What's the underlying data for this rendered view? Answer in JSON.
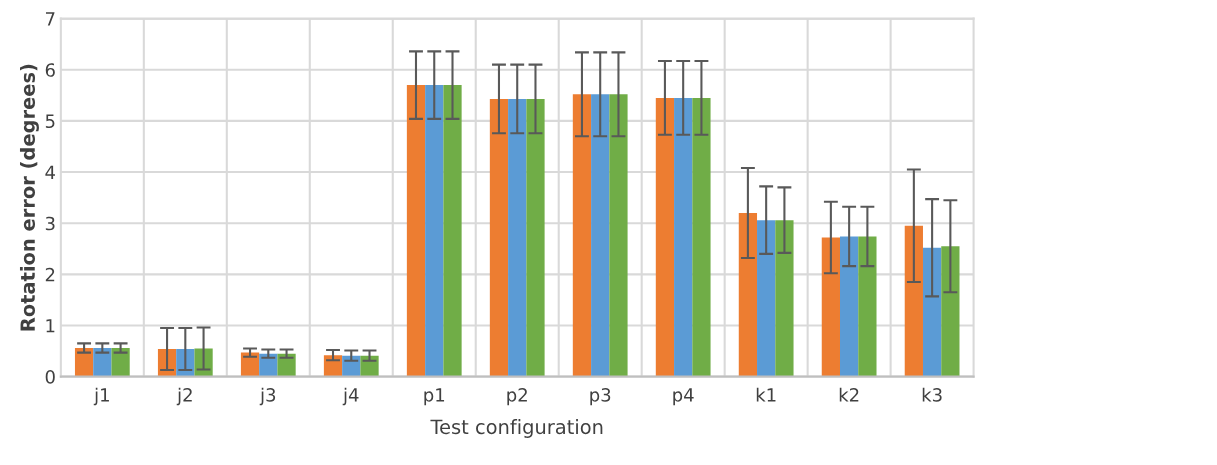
{
  "chart_data": {
    "type": "bar",
    "xlabel": "Test configuration",
    "ylabel": "Rotation error (degrees)",
    "categories": [
      "j1",
      "j2",
      "j3",
      "j4",
      "p1",
      "p2",
      "p3",
      "p4",
      "k1",
      "k2",
      "k3"
    ],
    "series": [
      {
        "color": "#ed7d31",
        "values": [
          0.56,
          0.54,
          0.47,
          0.42,
          5.7,
          5.43,
          5.52,
          5.45,
          3.2,
          2.72,
          2.95
        ],
        "errors": [
          0.09,
          0.41,
          0.08,
          0.1,
          0.66,
          0.67,
          0.82,
          0.72,
          0.88,
          0.7,
          1.1
        ]
      },
      {
        "color": "#5b9bd5",
        "values": [
          0.56,
          0.54,
          0.45,
          0.41,
          5.7,
          5.43,
          5.52,
          5.45,
          3.06,
          2.74,
          2.52
        ],
        "errors": [
          0.09,
          0.41,
          0.08,
          0.1,
          0.66,
          0.67,
          0.82,
          0.72,
          0.66,
          0.58,
          0.95
        ]
      },
      {
        "color": "#70ad47",
        "values": [
          0.56,
          0.55,
          0.45,
          0.41,
          5.7,
          5.43,
          5.52,
          5.45,
          3.06,
          2.74,
          2.55
        ],
        "errors": [
          0.09,
          0.41,
          0.08,
          0.1,
          0.66,
          0.67,
          0.82,
          0.72,
          0.64,
          0.58,
          0.9
        ]
      }
    ],
    "ylim": [
      0,
      7
    ],
    "yticks": [
      0,
      1,
      2,
      3,
      4,
      5,
      6,
      7
    ],
    "grid": true
  }
}
